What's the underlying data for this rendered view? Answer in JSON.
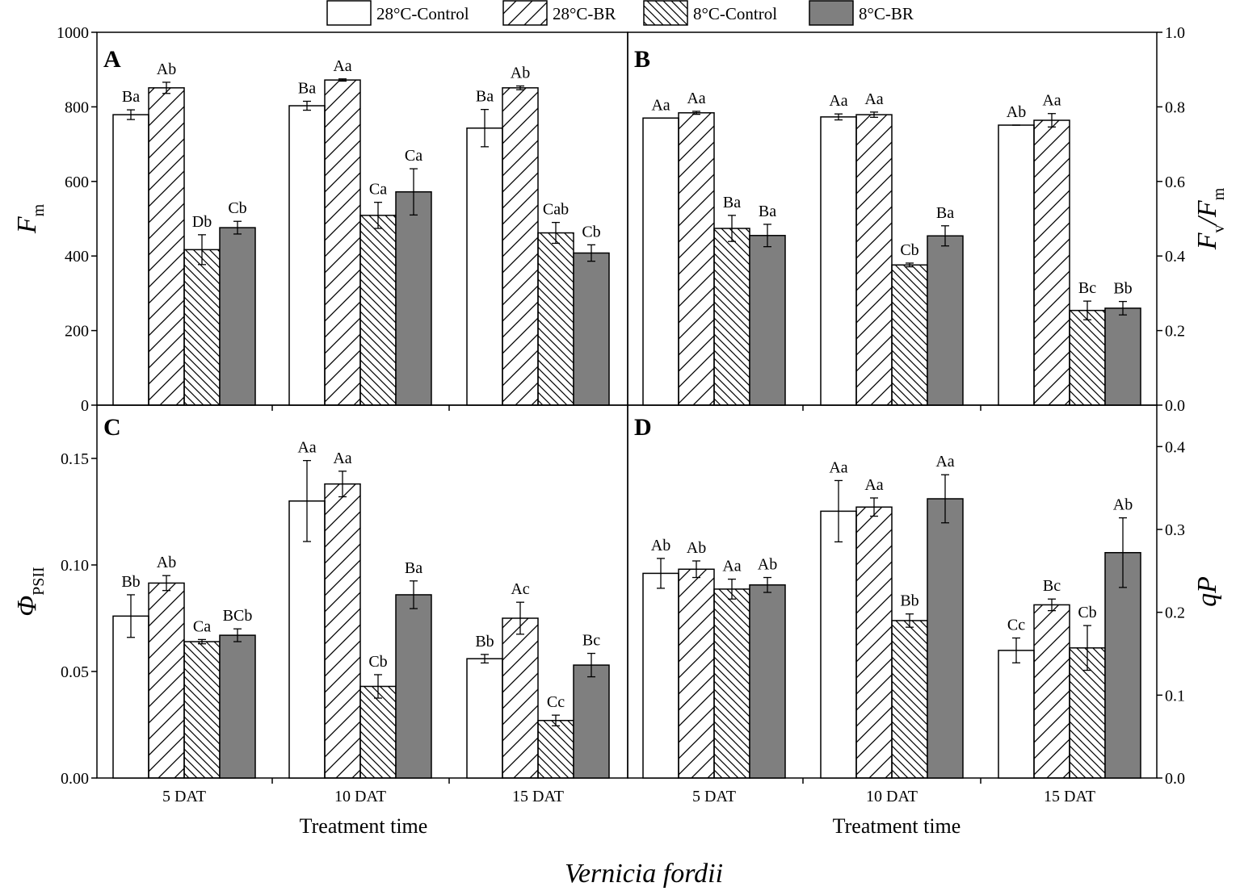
{
  "figure": {
    "species": "Vernicia fordii"
  },
  "legend": [
    {
      "label": "28°C-Control",
      "pattern": "none"
    },
    {
      "label": "28°C-BR",
      "pattern": "hatch-forward"
    },
    {
      "label": "8°C-Control",
      "pattern": "hatch-back"
    },
    {
      "label": "8°C-BR",
      "pattern": "solid"
    }
  ],
  "colors": {
    "bar_fill": "#ffffff",
    "solid_fill": "#7f7f7f",
    "stroke": "#000000"
  },
  "chart_data": [
    {
      "panel": "A",
      "type": "bar",
      "ylabel_main": "F",
      "ylabel_sub": "m",
      "xlabel": "",
      "ylim": [
        0,
        1000
      ],
      "yticks": [
        0,
        200,
        400,
        600,
        800,
        1000
      ],
      "ytick_labels": [
        "0",
        "200",
        "400",
        "600",
        "800",
        "1000"
      ],
      "categories": [
        "5 DAT",
        "10 DAT",
        "15 DAT"
      ],
      "series": [
        {
          "name": "28°C-Control",
          "values": [
            779,
            803,
            743
          ],
          "errors": [
            13,
            12,
            50
          ],
          "labels": [
            "Ba",
            "Ba",
            "Ba"
          ]
        },
        {
          "name": "28°C-BR",
          "values": [
            851,
            872,
            851
          ],
          "errors": [
            15,
            3,
            5
          ],
          "labels": [
            "Ab",
            "Aa",
            "Ab"
          ]
        },
        {
          "name": "8°C-Control",
          "values": [
            417,
            509,
            462
          ],
          "errors": [
            40,
            35,
            28
          ],
          "labels": [
            "Db",
            "Ca",
            "Cab"
          ]
        },
        {
          "name": "8°C-BR",
          "values": [
            476,
            572,
            408
          ],
          "errors": [
            17,
            62,
            22
          ],
          "labels": [
            "Cb",
            "Ca",
            "Cb"
          ]
        }
      ]
    },
    {
      "panel": "B",
      "type": "bar",
      "ylabel_main": "F",
      "ylabel_sub": "v",
      "ylabel_main2": "F",
      "ylabel_sub2": "m",
      "ylabel_sep": "/",
      "xlabel": "",
      "ylim": [
        0,
        1.0
      ],
      "yticks": [
        0,
        0.2,
        0.4,
        0.6,
        0.8,
        1.0
      ],
      "ytick_labels": [
        "0.0",
        "0.2",
        "0.4",
        "0.6",
        "0.8",
        "1.0"
      ],
      "categories": [
        "5 DAT",
        "10 DAT",
        "15 DAT"
      ],
      "series": [
        {
          "name": "28°C-Control",
          "values": [
            0.77,
            0.773,
            0.751
          ],
          "errors": [
            0,
            0.008,
            0
          ],
          "labels": [
            "Aa",
            "Aa",
            "Ab"
          ]
        },
        {
          "name": "28°C-BR",
          "values": [
            0.784,
            0.779,
            0.764
          ],
          "errors": [
            0.004,
            0.007,
            0.018
          ],
          "labels": [
            "Aa",
            "Aa",
            "Aa"
          ]
        },
        {
          "name": "8°C-Control",
          "values": [
            0.474,
            0.376,
            0.254
          ],
          "errors": [
            0.035,
            0.005,
            0.025
          ],
          "labels": [
            "Ba",
            "Cb",
            "Bc"
          ]
        },
        {
          "name": "8°C-BR",
          "values": [
            0.455,
            0.454,
            0.26
          ],
          "errors": [
            0.03,
            0.027,
            0.018
          ],
          "labels": [
            "Ba",
            "Ba",
            "Bb"
          ]
        }
      ]
    },
    {
      "panel": "C",
      "type": "bar",
      "ylabel_main": "Φ",
      "ylabel_sub": "PSII",
      "xlabel": "Treatment time",
      "ylim": [
        0,
        0.175
      ],
      "yticks": [
        0,
        0.05,
        0.1,
        0.15
      ],
      "ytick_labels": [
        "0.00",
        "0.05",
        "0.10",
        "0.15"
      ],
      "categories": [
        "5 DAT",
        "10 DAT",
        "15 DAT"
      ],
      "series": [
        {
          "name": "28°C-Control",
          "values": [
            0.076,
            0.13,
            0.056
          ],
          "errors": [
            0.01,
            0.019,
            0.002
          ],
          "labels": [
            "Bb",
            "Aa",
            "Bb"
          ]
        },
        {
          "name": "28°C-BR",
          "values": [
            0.0915,
            0.138,
            0.075
          ],
          "errors": [
            0.0035,
            0.006,
            0.0075
          ],
          "labels": [
            "Ab",
            "Aa",
            "Ac"
          ]
        },
        {
          "name": "8°C-Control",
          "values": [
            0.064,
            0.043,
            0.027
          ],
          "errors": [
            0.001,
            0.0055,
            0.0025
          ],
          "labels": [
            "Ca",
            "Cb",
            "Cc"
          ]
        },
        {
          "name": "8°C-BR",
          "values": [
            0.067,
            0.086,
            0.053
          ],
          "errors": [
            0.003,
            0.0065,
            0.0055
          ],
          "labels": [
            "BCb",
            "Ba",
            "Bc"
          ]
        }
      ]
    },
    {
      "panel": "D",
      "type": "bar",
      "ylabel_main": "qP",
      "ylabel_sub": "",
      "xlabel": "Treatment time",
      "ylim": [
        0,
        0.45
      ],
      "yticks": [
        0,
        0.1,
        0.2,
        0.3,
        0.4
      ],
      "ytick_labels": [
        "0.0",
        "0.1",
        "0.2",
        "0.3",
        "0.4"
      ],
      "categories": [
        "5 DAT",
        "10 DAT",
        "15 DAT"
      ],
      "series": [
        {
          "name": "28°C-Control",
          "values": [
            0.247,
            0.322,
            0.154
          ],
          "errors": [
            0.018,
            0.037,
            0.015
          ],
          "labels": [
            "Ab",
            "Aa",
            "Cc"
          ]
        },
        {
          "name": "28°C-BR",
          "values": [
            0.252,
            0.327,
            0.209
          ],
          "errors": [
            0.01,
            0.011,
            0.007
          ],
          "labels": [
            "Ab",
            "Aa",
            "Bc"
          ]
        },
        {
          "name": "8°C-Control",
          "values": [
            0.228,
            0.19,
            0.157
          ],
          "errors": [
            0.012,
            0.008,
            0.027
          ],
          "labels": [
            "Aa",
            "Bb",
            "Cb"
          ]
        },
        {
          "name": "8°C-BR",
          "values": [
            0.233,
            0.337,
            0.272
          ],
          "errors": [
            0.009,
            0.029,
            0.042
          ],
          "labels": [
            "Ab",
            "Aa",
            "Ab"
          ]
        }
      ]
    }
  ]
}
